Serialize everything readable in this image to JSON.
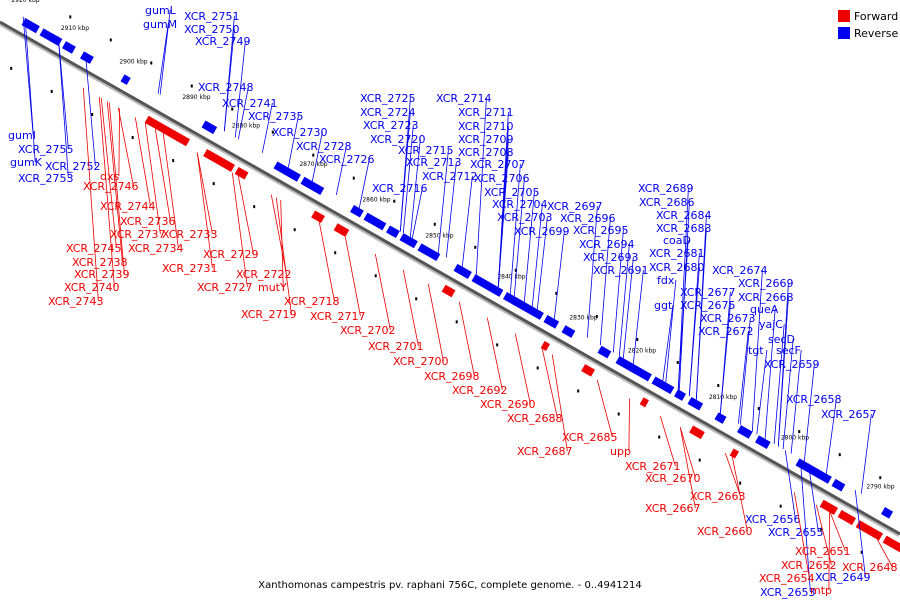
{
  "title": "Xanthomonas campestris pv. raphani 756C, complete genome. - 0..4941214",
  "legend": [
    {
      "label": "Forward",
      "color": "#ee0000"
    },
    {
      "label": "Reverse",
      "color": "#0000ee"
    }
  ],
  "colors": {
    "forward": "#ee0000",
    "reverse": "#0000ee",
    "backbone": "#555555"
  },
  "axis": {
    "unit": "kbp",
    "ticks": [
      2920,
      2910,
      2900,
      2890,
      2880,
      2870,
      2860,
      2850,
      2840,
      2830,
      2820,
      2810,
      2800,
      2790
    ]
  },
  "reverse_labels": [
    "gumL",
    "gumM",
    "XCR_2751",
    "XCR_2750",
    "XCR_2749",
    "XCR_2748",
    "XCR_2741",
    "XCR_2735",
    "gumI",
    "XCR_2755",
    "gumK",
    "XCR_2752",
    "XCR_2753",
    "XCR_2730",
    "XCR_2728",
    "XCR_2726",
    "XCR_2725",
    "XCR_2724",
    "XCR_2723",
    "XCR_2720",
    "XCR_2715",
    "XCR_2713",
    "XCR_2712",
    "XCR_2716",
    "XCR_2714",
    "XCR_2711",
    "XCR_2710",
    "XCR_2709",
    "XCR_2708",
    "XCR_2707",
    "XCR_2706",
    "XCR_2705",
    "XCR_2704",
    "XCR_2703",
    "XCR_2699",
    "XCR_2697",
    "XCR_2696",
    "XCR_2695",
    "XCR_2694",
    "XCR_2693",
    "XCR_2691",
    "XCR_2689",
    "XCR_2686",
    "XCR_2684",
    "XCR_2683",
    "coaD",
    "XCR_2681",
    "XCR_2680",
    "fdx",
    "ggt",
    "XCR_2677",
    "XCR_2675",
    "XCR_2673",
    "XCR_2672",
    "XCR_2674",
    "XCR_2669",
    "XCR_2668",
    "queA",
    "yajC",
    "secD",
    "tgt",
    "secF",
    "XCR_2659",
    "XCR_2658",
    "XCR_2657",
    "XCR_2656",
    "XCR_2655",
    "XCR_2649",
    "XCR_2653"
  ],
  "forward_labels": [
    "dxs",
    "XCR_2746",
    "XCR_2744",
    "XCR_2736",
    "XCR_2737",
    "XCR_2733",
    "XCR_2745",
    "XCR_2734",
    "XCR_2738",
    "XCR_2731",
    "XCR_2739",
    "XCR_2740",
    "XCR_2743",
    "XCR_2729",
    "XCR_2722",
    "XCR_2727",
    "mutY",
    "XCR_2718",
    "XCR_2719",
    "XCR_2717",
    "XCR_2702",
    "XCR_2701",
    "XCR_2700",
    "XCR_2698",
    "XCR_2692",
    "XCR_2690",
    "XCR_2688",
    "XCR_2685",
    "XCR_2687",
    "upp",
    "XCR_2671",
    "XCR_2670",
    "XCR_2667",
    "XCR_2663",
    "XCR_2660",
    "XCR_2651",
    "XCR_2652",
    "XCR_2654",
    "XCR_2648",
    "mtp"
  ]
}
